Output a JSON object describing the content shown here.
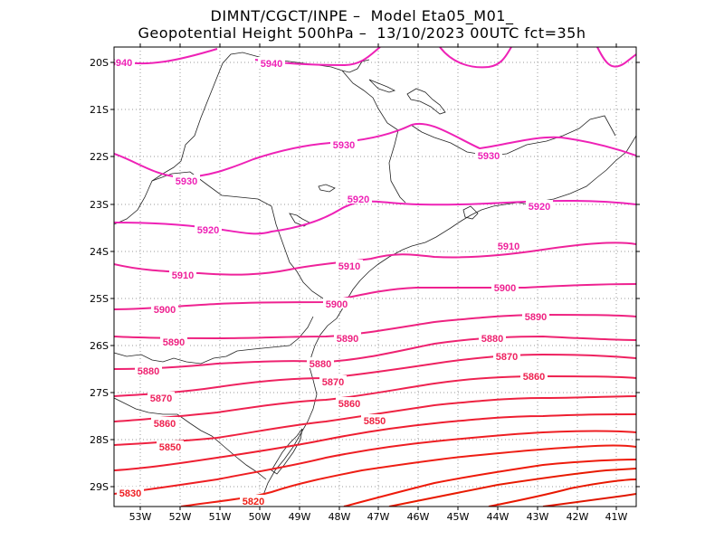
{
  "header": {
    "line1": "DIMNT/CGCT/INPE –  Model Eta05_M01_",
    "line2": "Geopotential Height 500hPa –  13/10/2023 00UTC fct=35h"
  },
  "axes": {
    "lat_labels": [
      "20S",
      "21S",
      "22S",
      "23S",
      "24S",
      "25S",
      "26S",
      "27S",
      "28S",
      "29S"
    ],
    "lon_labels": [
      "53W",
      "52W",
      "51W",
      "50W",
      "49W",
      "48W",
      "47W",
      "46W",
      "45W",
      "44W",
      "43W",
      "42W",
      "41W"
    ]
  },
  "chart_data": {
    "type": "contour",
    "title": "Geopotential Height 500hPa",
    "variable_units": "gpm",
    "lat_range": [
      -29.4,
      -19.6
    ],
    "lon_range": [
      -53.6,
      -40.5
    ],
    "contour_interval": 10,
    "contours": [
      {
        "level": 5940,
        "label": "5940",
        "color": "#ee22b6"
      },
      {
        "level": 5930,
        "label": "5930",
        "color": "#ee22b6"
      },
      {
        "level": 5920,
        "label": "5920",
        "color": "#ee22b6"
      },
      {
        "level": 5910,
        "label": "5910",
        "color": "#ee229a"
      },
      {
        "level": 5900,
        "label": "5900",
        "color": "#ee2290"
      },
      {
        "level": 5890,
        "label": "5890",
        "color": "#ee2280"
      },
      {
        "level": 5880,
        "label": "5880",
        "color": "#ee2270"
      },
      {
        "level": 5870,
        "label": "5870",
        "color": "#ee2260"
      },
      {
        "level": 5860,
        "label": "5860",
        "color": "#ee2250"
      },
      {
        "level": 5850,
        "label": "5850",
        "color": "#ee2240"
      },
      {
        "level": 5840,
        "label": "",
        "color": "#ee1e30"
      },
      {
        "level": 5830,
        "label": "5830",
        "color": "#ee1e22"
      },
      {
        "level": 5820,
        "label": "5820",
        "color": "#ee1e14"
      },
      {
        "level": 5810,
        "label": "",
        "color": "#ee1a0a"
      },
      {
        "level": 5800,
        "label": "",
        "color": "#e81a00"
      },
      {
        "level": 5790,
        "label": "",
        "color": "#e81800"
      },
      {
        "level": 5780,
        "label": "",
        "color": "#e01600"
      }
    ]
  }
}
